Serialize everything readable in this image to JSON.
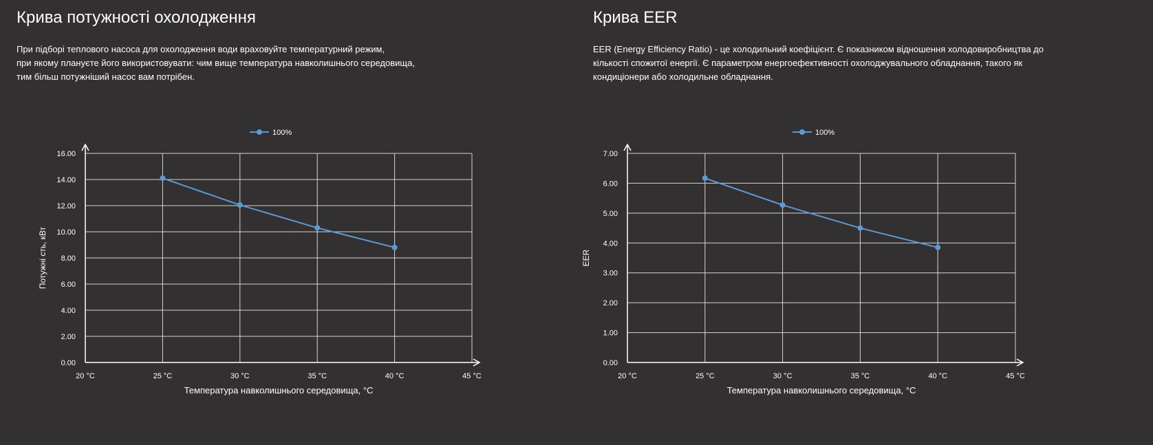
{
  "charts": [
    {
      "title": "Крива потужності охолодження",
      "description": [
        "При підборі теплового насоса для охолодження води враховуйте температурний режим,",
        "при якому плануєте його використовувати: чим вище температура навколишнього середовища,",
        "тим більш потужніший насос вам потрібен."
      ]
    },
    {
      "title": "Крива EER",
      "description": [
        "EER (Energy Efficiency Ratio) - це холодильний коефіцієнт. Є показником відношення холодовиробництва до",
        "кількості спожитої енергії. Є параметром енергоефективності охолоджувального обладнання, такого як",
        "кондиціонери або холодильне обладнання."
      ]
    }
  ],
  "chart_data": [
    {
      "type": "line",
      "x": [
        25,
        30,
        35,
        40
      ],
      "x_tick_values": [
        20,
        25,
        30,
        35,
        40,
        45
      ],
      "x_tick_labels": [
        "20 °C",
        "25 °C",
        "30 °C",
        "35 °C",
        "40 °C",
        "45 °C"
      ],
      "xlim": [
        20,
        45
      ],
      "ylim": [
        0,
        16
      ],
      "y_tick_values": [
        0,
        2,
        4,
        6,
        8,
        10,
        12,
        14,
        16
      ],
      "y_tick_labels": [
        "0.00",
        "2.00",
        "4.00",
        "6.00",
        "8.00",
        "10.00",
        "12.00",
        "14.00",
        "16.00"
      ],
      "xlabel": "Температура навколишнього середовища, °C",
      "ylabel": "Потужні сть, кВт",
      "series": [
        {
          "name": "100%",
          "values": [
            14.1,
            12.05,
            10.3,
            8.8
          ],
          "color": "#5b9bd5"
        }
      ],
      "grid": true,
      "legend": "top-center"
    },
    {
      "type": "line",
      "x": [
        25,
        30,
        35,
        40
      ],
      "x_tick_values": [
        20,
        25,
        30,
        35,
        40,
        45
      ],
      "x_tick_labels": [
        "20 °C",
        "25 °C",
        "30 °C",
        "35 °C",
        "40 °C",
        "45 °C"
      ],
      "xlim": [
        20,
        45
      ],
      "ylim": [
        0,
        7
      ],
      "y_tick_values": [
        0,
        1,
        2,
        3,
        4,
        5,
        6,
        7
      ],
      "y_tick_labels": [
        "0.00",
        "1.00",
        "2.00",
        "3.00",
        "4.00",
        "5.00",
        "6.00",
        "7.00"
      ],
      "xlabel": "Температура навколишнього середовища, °C",
      "ylabel": "EER",
      "series": [
        {
          "name": "100%",
          "values": [
            6.17,
            5.27,
            4.5,
            3.85
          ],
          "color": "#5b9bd5"
        }
      ],
      "grid": true,
      "legend": "top-center"
    }
  ]
}
